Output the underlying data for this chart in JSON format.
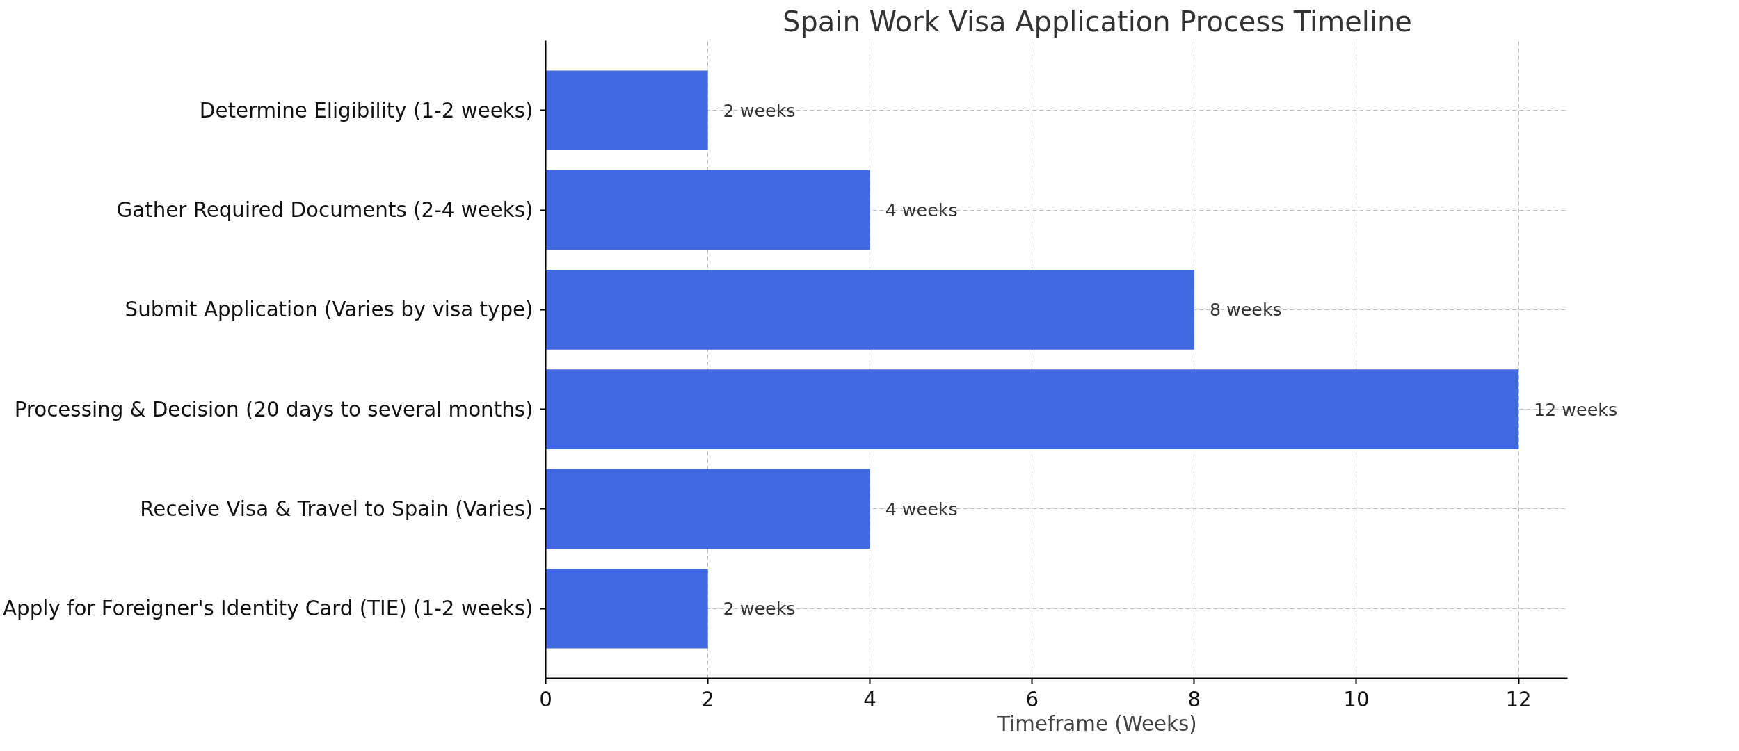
{
  "chart_data": {
    "type": "bar",
    "orientation": "horizontal",
    "title": "Spain Work Visa Application Process Timeline",
    "xlabel": "Timeframe (Weeks)",
    "categories": [
      "Determine Eligibility (1-2 weeks)",
      "Gather Required Documents (2-4 weeks)",
      "Submit Application (Varies by visa type)",
      "Processing & Decision (20 days to several months)",
      "Receive Visa & Travel to Spain (Varies)",
      "Apply for Foreigner's Identity Card (TIE) (1-2 weeks)"
    ],
    "values": [
      2,
      4,
      8,
      12,
      4,
      2
    ],
    "value_labels": [
      "2 weeks",
      "4 weeks",
      "8 weeks",
      "12 weeks",
      "4 weeks",
      "2 weeks"
    ],
    "color": "#4169e1",
    "xlim": [
      0,
      12.6
    ],
    "xticks": [
      0,
      2,
      4,
      6,
      8,
      10,
      12
    ],
    "grid": true
  }
}
